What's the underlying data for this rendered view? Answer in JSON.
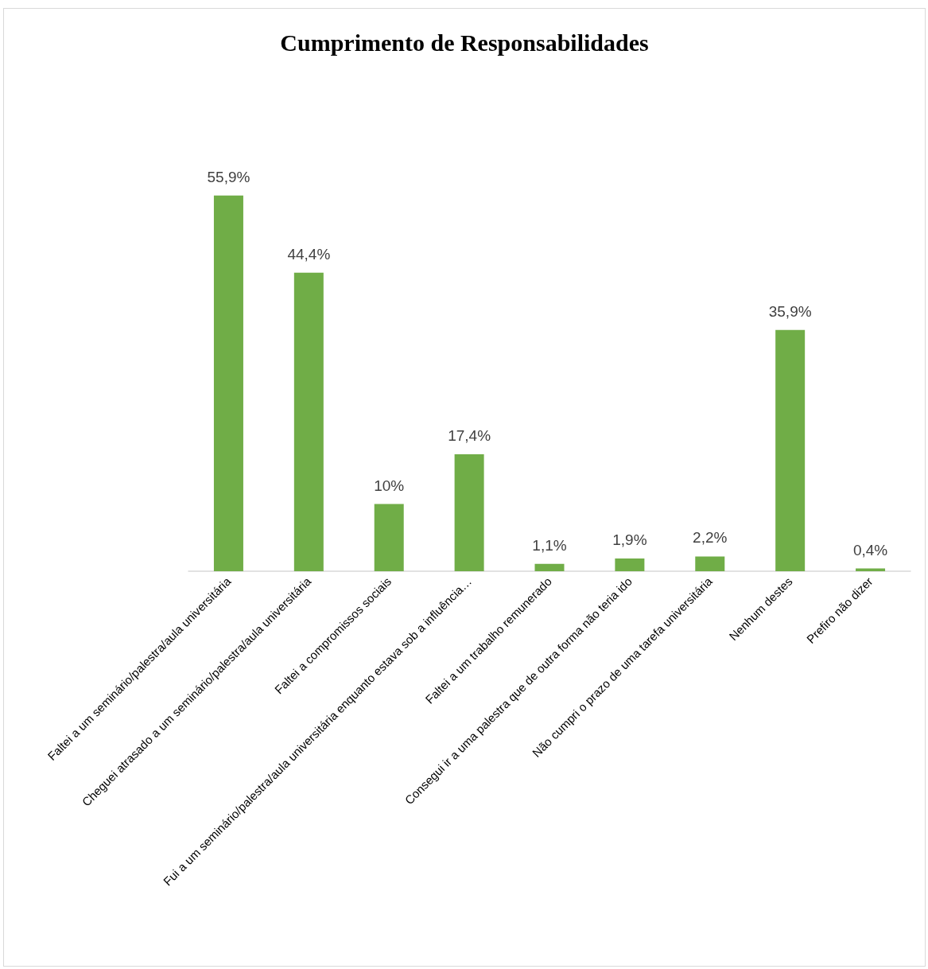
{
  "chart_data": {
    "type": "bar",
    "title": "Cumprimento de Responsabilidades",
    "categories": [
      "Faltei a um seminário/palestra/aula universitária",
      "Cheguei atrasado a um seminário/palestra/aula universitária",
      "Faltei a compromissos sociais",
      "Fui a um seminário/palestra/aula universitária enquanto estava sob a influência…",
      "Faltei a um trabalho remunerado",
      "Consegui ir a uma palestra que de outra forma não teria ido",
      "Não cumpri o prazo de uma tarefa universitária",
      "Nenhum destes",
      "Prefiro não dizer"
    ],
    "values": [
      55.9,
      44.4,
      10,
      17.4,
      1.1,
      1.9,
      2.2,
      35.9,
      0.4
    ],
    "value_labels": [
      "55,9%",
      "44,4%",
      "10%",
      "17,4%",
      "1,1%",
      "1,9%",
      "2,2%",
      "35,9%",
      "0,4%"
    ],
    "color": "#70ad47"
  }
}
